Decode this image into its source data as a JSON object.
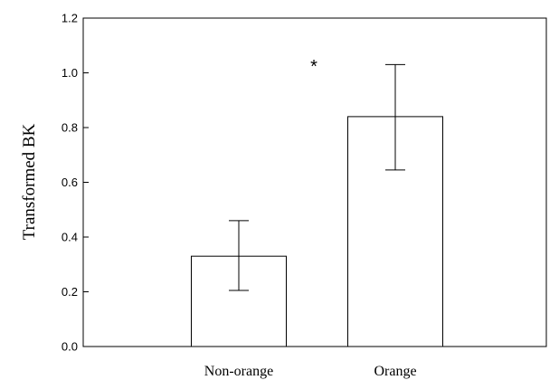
{
  "chart_data": {
    "type": "bar",
    "title": "",
    "xlabel": "",
    "ylabel": "Transformed BK",
    "categories": [
      "Non-orange",
      "Orange"
    ],
    "values": [
      0.33,
      0.84
    ],
    "error_bars": {
      "lower": [
        0.205,
        0.645
      ],
      "upper": [
        0.46,
        1.03
      ]
    },
    "ylim": [
      0.0,
      1.2
    ],
    "yticks": [
      "0.0",
      "0.2",
      "0.4",
      "0.6",
      "0.8",
      "1.0",
      "1.2"
    ],
    "ytick_values": [
      0.0,
      0.2,
      0.4,
      0.6,
      0.8,
      1.0,
      1.2
    ],
    "annotation": "*",
    "grid": false,
    "legend": "none",
    "colors": {
      "bar_fill": "#ffffff",
      "stroke": "#000000"
    }
  }
}
